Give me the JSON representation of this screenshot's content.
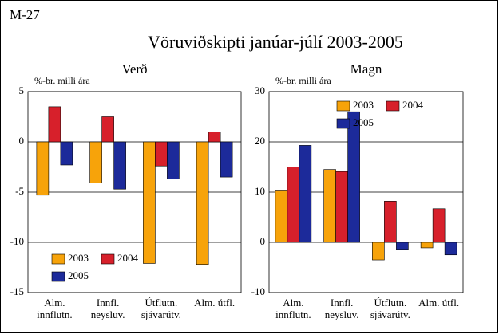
{
  "figure_label": "M-27",
  "title": "Vöruviðskipti janúar-júlí 2003-2005",
  "chart_data": [
    {
      "type": "bar",
      "title": "Verð",
      "ylabel": "%-br. milli ára",
      "categories": [
        "Alm. innflutn.",
        "Innfl. neysluv.",
        "Útflutn. sjávarútv.",
        "Alm. útfl."
      ],
      "series": [
        {
          "name": "2003",
          "color": "#f7a30a",
          "values": [
            -5.3,
            -4.1,
            -12.1,
            -12.2
          ]
        },
        {
          "name": "2004",
          "color": "#d7202b",
          "values": [
            3.5,
            2.5,
            -2.4,
            1.0
          ]
        },
        {
          "name": "2005",
          "color": "#1c2a9a",
          "values": [
            -2.3,
            -4.7,
            -3.7,
            -3.5
          ]
        }
      ],
      "ylim": [
        -15,
        5
      ],
      "yticks": [
        -15,
        -10,
        -5,
        0,
        5
      ],
      "grid": true,
      "legend": "lower left"
    },
    {
      "type": "bar",
      "title": "Magn",
      "ylabel": "%-br. milli ára",
      "categories": [
        "Alm. innflutn.",
        "Innfl. neysluv.",
        "Útflutn. sjávarútv.",
        "Alm. útfl."
      ],
      "series": [
        {
          "name": "2003",
          "color": "#f7a30a",
          "values": [
            10.4,
            14.5,
            -3.5,
            -1.1
          ]
        },
        {
          "name": "2004",
          "color": "#d7202b",
          "values": [
            15.0,
            14.1,
            8.2,
            6.7
          ]
        },
        {
          "name": "2005",
          "color": "#1c2a9a",
          "values": [
            19.3,
            26.0,
            -1.4,
            -2.5
          ]
        }
      ],
      "ylim": [
        -10,
        30
      ],
      "yticks": [
        -10,
        0,
        10,
        20,
        30
      ],
      "grid": true,
      "legend": "upper right"
    }
  ]
}
